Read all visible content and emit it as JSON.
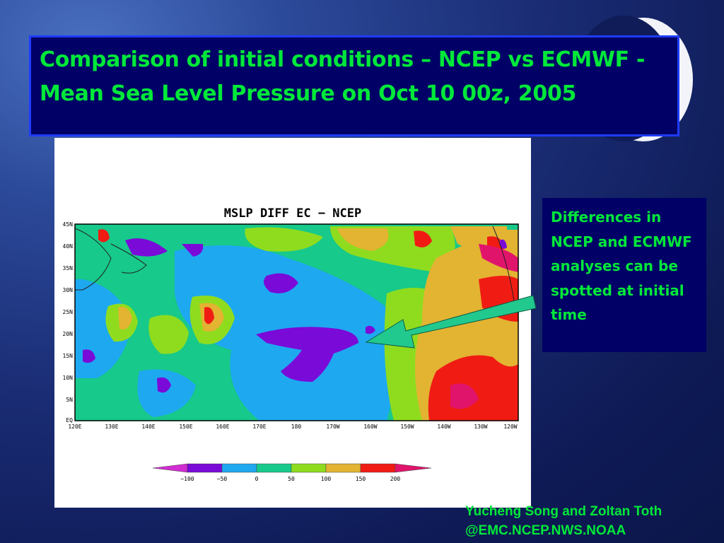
{
  "title": "Comparison of initial conditions – NCEP vs ECMWF - Mean Sea Level Pressure on Oct 10 00z, 2005",
  "plot": {
    "heading": "MSLP DIFF EC − NCEP",
    "lat_labels": [
      "45N",
      "40N",
      "35N",
      "30N",
      "25N",
      "20N",
      "15N",
      "10N",
      "5N",
      "EQ"
    ],
    "lon_labels": [
      "120E",
      "130E",
      "140E",
      "150E",
      "160E",
      "170E",
      "180",
      "170W",
      "160W",
      "150W",
      "140W",
      "130W",
      "120W"
    ],
    "colorbar": {
      "labels": [
        "−100",
        "−50",
        "0",
        "50",
        "100",
        "150",
        "200"
      ],
      "colors": [
        "#d22cd2",
        "#7a0ad8",
        "#1ea8f0",
        "#17c98a",
        "#8fdc1f",
        "#e3b332",
        "#f01c14",
        "#e1146c"
      ]
    }
  },
  "side_note": "Differences in NCEP and ECMWF analyses can be spotted at initial time",
  "credit": {
    "line1": "Yucheng Song and Zoltan Toth",
    "line2": "@EMC.NCEP.NWS.NOAA"
  },
  "colors": {
    "title_text": "#00e83a",
    "box_background": "#000066",
    "arrow": "#22c98e"
  }
}
